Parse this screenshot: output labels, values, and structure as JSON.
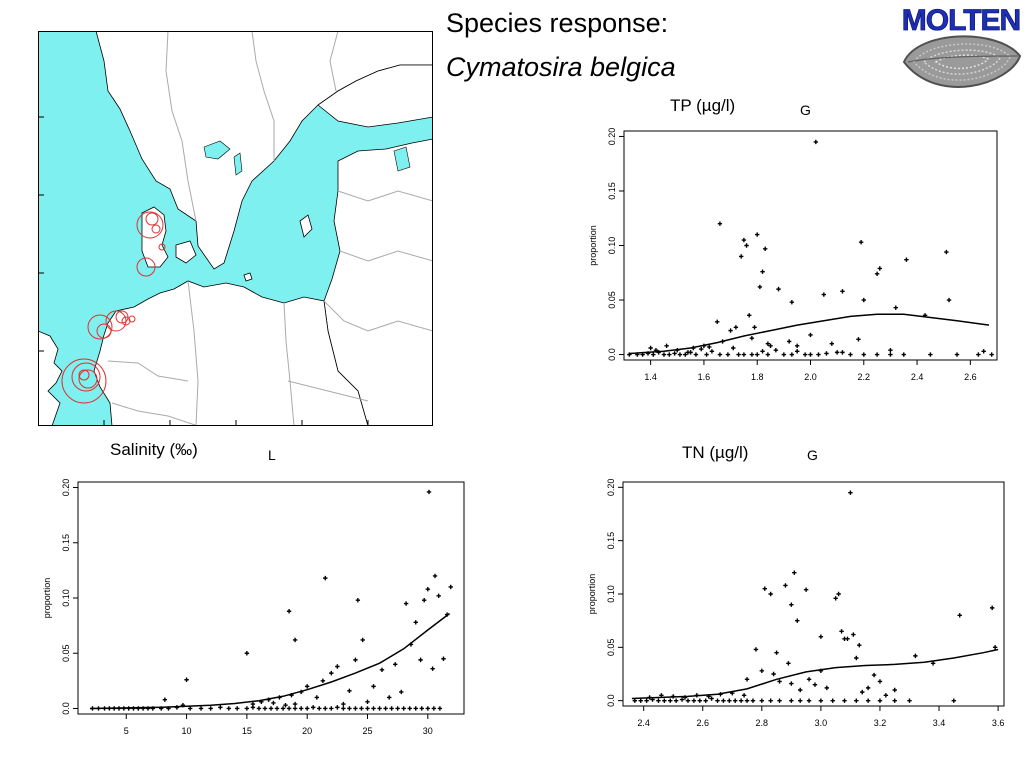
{
  "header": {
    "title_line1": "Species response:",
    "title_line2": "Cymatosira belgica",
    "logo_text": "MOLTEN"
  },
  "colors": {
    "sea": "#7ff0f0",
    "land": "#ffffff",
    "border": "#aaaaaa",
    "station": "#e03030",
    "logo_blue": "#1f2fb4",
    "logo_gray": "#8a8a8a"
  },
  "map": {
    "name": "station-map"
  },
  "chart_data": [
    {
      "id": "tp",
      "type": "scatter",
      "title": "TP (µg/l)",
      "code": "G",
      "ylabel": "proportion",
      "xlim": [
        1.3,
        2.7
      ],
      "ylim": [
        -0.005,
        0.205
      ],
      "xticks": [
        1.4,
        1.6,
        1.8,
        2.0,
        2.2,
        2.4,
        2.6
      ],
      "xtick_labels": [
        "1.4",
        "1.6",
        "1.8",
        "2.0",
        "2.2",
        "2.4",
        "2.6"
      ],
      "yticks": [
        0.0,
        0.05,
        0.1,
        0.15,
        0.2
      ],
      "ytick_labels": [
        "0.0",
        "0.05",
        "0.10",
        "0.15",
        "0.20"
      ],
      "points": [
        [
          1.32,
          0.0
        ],
        [
          1.35,
          0.0
        ],
        [
          1.37,
          0.0
        ],
        [
          1.39,
          0.001
        ],
        [
          1.41,
          0.0
        ],
        [
          1.43,
          0.002
        ],
        [
          1.45,
          0.0
        ],
        [
          1.47,
          0.0
        ],
        [
          1.49,
          0.001
        ],
        [
          1.51,
          0.0
        ],
        [
          1.53,
          0.0
        ],
        [
          1.55,
          0.002
        ],
        [
          1.57,
          0.0
        ],
        [
          1.59,
          0.005
        ],
        [
          1.61,
          0.0
        ],
        [
          1.63,
          0.003
        ],
        [
          1.66,
          0.0
        ],
        [
          1.69,
          0.0
        ],
        [
          1.71,
          0.006
        ],
        [
          1.73,
          0.0
        ],
        [
          1.75,
          0.0
        ],
        [
          1.78,
          0.0
        ],
        [
          1.8,
          0.0
        ],
        [
          1.82,
          0.003
        ],
        [
          1.84,
          0.0
        ],
        [
          1.87,
          0.004
        ],
        [
          1.9,
          0.0
        ],
        [
          1.93,
          0.0
        ],
        [
          1.95,
          0.003
        ],
        [
          1.98,
          0.0
        ],
        [
          2.0,
          0.0
        ],
        [
          2.03,
          0.0
        ],
        [
          2.06,
          0.001
        ],
        [
          2.1,
          0.002
        ],
        [
          2.15,
          0.0
        ],
        [
          2.2,
          0.0
        ],
        [
          2.25,
          0.0
        ],
        [
          2.3,
          0.0
        ],
        [
          2.35,
          0.0
        ],
        [
          2.45,
          0.0
        ],
        [
          2.55,
          0.0
        ],
        [
          2.63,
          0.0
        ],
        [
          2.68,
          0.0
        ],
        [
          1.4,
          0.006
        ],
        [
          1.42,
          0.004
        ],
        [
          1.46,
          0.008
        ],
        [
          1.5,
          0.004
        ],
        [
          1.54,
          0.002
        ],
        [
          1.56,
          0.006
        ],
        [
          1.6,
          0.008
        ],
        [
          1.62,
          0.007
        ],
        [
          1.65,
          0.03
        ],
        [
          1.67,
          0.012
        ],
        [
          1.7,
          0.022
        ],
        [
          1.72,
          0.025
        ],
        [
          1.74,
          0.09
        ],
        [
          1.75,
          0.105
        ],
        [
          1.76,
          0.1
        ],
        [
          1.77,
          0.036
        ],
        [
          1.78,
          0.015
        ],
        [
          1.79,
          0.025
        ],
        [
          1.8,
          0.11
        ],
        [
          1.81,
          0.062
        ],
        [
          1.82,
          0.076
        ],
        [
          1.83,
          0.097
        ],
        [
          1.84,
          0.01
        ],
        [
          1.85,
          0.008
        ],
        [
          1.88,
          0.06
        ],
        [
          1.92,
          0.012
        ],
        [
          1.93,
          0.048
        ],
        [
          1.95,
          0.008
        ],
        [
          2.0,
          0.018
        ],
        [
          2.02,
          0.195
        ],
        [
          2.05,
          0.055
        ],
        [
          2.12,
          0.058
        ],
        [
          2.19,
          0.103
        ],
        [
          2.2,
          0.05
        ],
        [
          2.25,
          0.074
        ],
        [
          2.26,
          0.079
        ],
        [
          2.3,
          0.004
        ],
        [
          2.32,
          0.043
        ],
        [
          2.36,
          0.087
        ],
        [
          2.43,
          0.036
        ],
        [
          2.51,
          0.094
        ],
        [
          2.52,
          0.05
        ],
        [
          2.65,
          0.003
        ],
        [
          1.66,
          0.12
        ],
        [
          2.18,
          0.014
        ],
        [
          2.12,
          0.002
        ],
        [
          2.08,
          0.01
        ]
      ],
      "curve": [
        [
          1.32,
          0.001
        ],
        [
          1.45,
          0.003
        ],
        [
          1.55,
          0.006
        ],
        [
          1.65,
          0.011
        ],
        [
          1.75,
          0.017
        ],
        [
          1.85,
          0.022
        ],
        [
          1.95,
          0.027
        ],
        [
          2.05,
          0.031
        ],
        [
          2.15,
          0.035
        ],
        [
          2.25,
          0.037
        ],
        [
          2.35,
          0.037
        ],
        [
          2.45,
          0.034
        ],
        [
          2.55,
          0.031
        ],
        [
          2.67,
          0.027
        ]
      ]
    },
    {
      "id": "salinity",
      "type": "scatter",
      "title": "Salinity (‰)",
      "code": "L",
      "ylabel": "proportion",
      "xlim": [
        1.0,
        33.0
      ],
      "ylim": [
        -0.005,
        0.205
      ],
      "xticks": [
        5,
        10,
        15,
        20,
        25,
        30
      ],
      "xtick_labels": [
        "5",
        "10",
        "15",
        "20",
        "25",
        "30"
      ],
      "yticks": [
        0.0,
        0.05,
        0.1,
        0.15,
        0.2
      ],
      "ytick_labels": [
        "0.0",
        "0.05",
        "0.10",
        "0.15",
        "0.20"
      ],
      "points": [
        [
          2.2,
          0.0
        ],
        [
          2.7,
          0.0
        ],
        [
          3.2,
          0.0
        ],
        [
          3.6,
          0.0
        ],
        [
          4.0,
          0.0
        ],
        [
          4.4,
          0.0
        ],
        [
          4.8,
          0.0
        ],
        [
          5.2,
          0.0
        ],
        [
          5.6,
          0.0
        ],
        [
          6.0,
          0.0
        ],
        [
          6.4,
          0.0
        ],
        [
          6.8,
          0.0
        ],
        [
          7.2,
          0.0
        ],
        [
          7.9,
          0.0
        ],
        [
          8.5,
          0.0
        ],
        [
          9.2,
          0.001
        ],
        [
          9.7,
          0.003
        ],
        [
          10.3,
          0.0
        ],
        [
          11.2,
          0.0
        ],
        [
          12.0,
          0.0
        ],
        [
          12.8,
          0.001
        ],
        [
          13.5,
          0.0
        ],
        [
          14.2,
          0.0
        ],
        [
          15.0,
          0.0
        ],
        [
          15.5,
          0.001
        ],
        [
          16.0,
          0.0
        ],
        [
          16.5,
          0.0
        ],
        [
          17.0,
          0.0
        ],
        [
          17.5,
          0.0
        ],
        [
          18.0,
          0.0
        ],
        [
          18.5,
          0.0
        ],
        [
          19.0,
          0.0
        ],
        [
          19.5,
          0.0
        ],
        [
          20.0,
          0.0
        ],
        [
          20.5,
          0.001
        ],
        [
          21.0,
          0.0
        ],
        [
          21.5,
          0.0
        ],
        [
          22.0,
          0.0
        ],
        [
          22.5,
          0.001
        ],
        [
          23.0,
          0.0
        ],
        [
          23.5,
          0.0
        ],
        [
          24.0,
          0.0
        ],
        [
          24.5,
          0.0
        ],
        [
          25.0,
          0.0
        ],
        [
          25.5,
          0.0
        ],
        [
          26.0,
          0.0
        ],
        [
          26.5,
          0.0
        ],
        [
          27.0,
          0.0
        ],
        [
          27.5,
          0.0
        ],
        [
          28.0,
          0.0
        ],
        [
          28.5,
          0.0
        ],
        [
          29.0,
          0.0
        ],
        [
          29.5,
          0.0
        ],
        [
          30.0,
          0.0
        ],
        [
          30.5,
          0.0
        ],
        [
          31.0,
          0.0
        ],
        [
          15.5,
          0.004
        ],
        [
          16.2,
          0.006
        ],
        [
          16.8,
          0.008
        ],
        [
          17.2,
          0.005
        ],
        [
          17.7,
          0.01
        ],
        [
          18.2,
          0.003
        ],
        [
          18.7,
          0.012
        ],
        [
          19.0,
          0.004
        ],
        [
          19.5,
          0.015
        ],
        [
          20.0,
          0.02
        ],
        [
          20.8,
          0.01
        ],
        [
          21.3,
          0.025
        ],
        [
          22.0,
          0.032
        ],
        [
          22.5,
          0.038
        ],
        [
          23.0,
          0.004
        ],
        [
          23.5,
          0.016
        ],
        [
          24.0,
          0.044
        ],
        [
          24.2,
          0.098
        ],
        [
          24.6,
          0.062
        ],
        [
          25.0,
          0.006
        ],
        [
          25.5,
          0.02
        ],
        [
          26.2,
          0.035
        ],
        [
          26.8,
          0.01
        ],
        [
          27.3,
          0.04
        ],
        [
          27.8,
          0.015
        ],
        [
          28.2,
          0.095
        ],
        [
          28.6,
          0.058
        ],
        [
          29.0,
          0.078
        ],
        [
          29.4,
          0.044
        ],
        [
          29.7,
          0.098
        ],
        [
          30.0,
          0.108
        ],
        [
          30.1,
          0.196
        ],
        [
          30.4,
          0.036
        ],
        [
          30.6,
          0.12
        ],
        [
          30.9,
          0.102
        ],
        [
          31.3,
          0.045
        ],
        [
          31.6,
          0.085
        ],
        [
          31.9,
          0.11
        ],
        [
          15.0,
          0.05
        ],
        [
          18.5,
          0.088
        ],
        [
          19.0,
          0.062
        ],
        [
          21.5,
          0.118
        ],
        [
          10.0,
          0.026
        ],
        [
          8.2,
          0.008
        ]
      ],
      "curve": [
        [
          2.0,
          0.0
        ],
        [
          5,
          0.0005
        ],
        [
          8,
          0.0012
        ],
        [
          10,
          0.002
        ],
        [
          12,
          0.003
        ],
        [
          14,
          0.0045
        ],
        [
          16,
          0.007
        ],
        [
          18,
          0.011
        ],
        [
          20,
          0.017
        ],
        [
          22,
          0.024
        ],
        [
          24,
          0.032
        ],
        [
          26,
          0.041
        ],
        [
          28,
          0.054
        ],
        [
          30,
          0.071
        ],
        [
          31.8,
          0.086
        ]
      ]
    },
    {
      "id": "tn",
      "type": "scatter",
      "title": "TN (µg/l)",
      "code": "G",
      "ylabel": "proportion",
      "xlim": [
        2.33,
        3.62
      ],
      "ylim": [
        -0.005,
        0.205
      ],
      "xticks": [
        2.4,
        2.6,
        2.8,
        3.0,
        3.2,
        3.4,
        3.6
      ],
      "xtick_labels": [
        "2.4",
        "2.6",
        "2.8",
        "3.0",
        "3.2",
        "3.4",
        "3.6"
      ],
      "yticks": [
        0.0,
        0.05,
        0.1,
        0.15,
        0.2
      ],
      "ytick_labels": [
        "0.0",
        "0.05",
        "0.10",
        "0.15",
        "0.20"
      ],
      "points": [
        [
          2.37,
          0.0
        ],
        [
          2.39,
          0.0
        ],
        [
          2.41,
          0.0
        ],
        [
          2.43,
          0.001
        ],
        [
          2.45,
          0.0
        ],
        [
          2.47,
          0.0
        ],
        [
          2.49,
          0.0
        ],
        [
          2.51,
          0.0
        ],
        [
          2.53,
          0.001
        ],
        [
          2.55,
          0.0
        ],
        [
          2.57,
          0.0
        ],
        [
          2.59,
          0.0
        ],
        [
          2.61,
          0.0
        ],
        [
          2.63,
          0.002
        ],
        [
          2.65,
          0.0
        ],
        [
          2.67,
          0.0
        ],
        [
          2.69,
          0.0
        ],
        [
          2.71,
          0.0
        ],
        [
          2.73,
          0.0
        ],
        [
          2.75,
          0.0
        ],
        [
          2.77,
          0.0
        ],
        [
          2.8,
          0.0
        ],
        [
          2.83,
          0.0
        ],
        [
          2.86,
          0.0
        ],
        [
          2.9,
          0.0
        ],
        [
          2.93,
          0.0
        ],
        [
          2.96,
          0.0
        ],
        [
          3.0,
          0.0
        ],
        [
          3.04,
          0.0
        ],
        [
          3.08,
          0.0
        ],
        [
          3.12,
          0.0
        ],
        [
          3.16,
          0.0
        ],
        [
          3.2,
          0.0
        ],
        [
          3.25,
          0.0
        ],
        [
          3.3,
          0.0
        ],
        [
          3.45,
          0.0
        ],
        [
          2.42,
          0.003
        ],
        [
          2.46,
          0.005
        ],
        [
          2.5,
          0.004
        ],
        [
          2.54,
          0.003
        ],
        [
          2.58,
          0.005
        ],
        [
          2.62,
          0.004
        ],
        [
          2.66,
          0.006
        ],
        [
          2.7,
          0.007
        ],
        [
          2.74,
          0.005
        ],
        [
          2.78,
          0.048
        ],
        [
          2.8,
          0.028
        ],
        [
          2.81,
          0.105
        ],
        [
          2.83,
          0.1
        ],
        [
          2.84,
          0.025
        ],
        [
          2.86,
          0.018
        ],
        [
          2.88,
          0.108
        ],
        [
          2.89,
          0.035
        ],
        [
          2.9,
          0.09
        ],
        [
          2.91,
          0.12
        ],
        [
          2.92,
          0.075
        ],
        [
          2.93,
          0.01
        ],
        [
          2.95,
          0.104
        ],
        [
          2.96,
          0.02
        ],
        [
          2.98,
          0.015
        ],
        [
          3.0,
          0.06
        ],
        [
          3.02,
          0.012
        ],
        [
          3.05,
          0.096
        ],
        [
          3.06,
          0.1
        ],
        [
          3.07,
          0.065
        ],
        [
          3.08,
          0.058
        ],
        [
          3.09,
          0.058
        ],
        [
          3.1,
          0.195
        ],
        [
          3.11,
          0.062
        ],
        [
          3.12,
          0.04
        ],
        [
          3.14,
          0.008
        ],
        [
          3.16,
          0.012
        ],
        [
          3.18,
          0.024
        ],
        [
          3.2,
          0.018
        ],
        [
          3.22,
          0.005
        ],
        [
          3.25,
          0.01
        ],
        [
          3.32,
          0.042
        ],
        [
          3.38,
          0.035
        ],
        [
          3.47,
          0.08
        ],
        [
          3.58,
          0.087
        ],
        [
          3.59,
          0.05
        ],
        [
          3.0,
          0.028
        ],
        [
          2.9,
          0.016
        ],
        [
          2.75,
          0.02
        ],
        [
          3.13,
          0.052
        ],
        [
          2.85,
          0.045
        ]
      ],
      "curve": [
        [
          2.36,
          0.002
        ],
        [
          2.45,
          0.003
        ],
        [
          2.55,
          0.004
        ],
        [
          2.65,
          0.006
        ],
        [
          2.75,
          0.011
        ],
        [
          2.85,
          0.02
        ],
        [
          2.95,
          0.027
        ],
        [
          3.05,
          0.031
        ],
        [
          3.15,
          0.033
        ],
        [
          3.25,
          0.034
        ],
        [
          3.35,
          0.036
        ],
        [
          3.45,
          0.04
        ],
        [
          3.55,
          0.045
        ],
        [
          3.6,
          0.048
        ]
      ]
    }
  ]
}
